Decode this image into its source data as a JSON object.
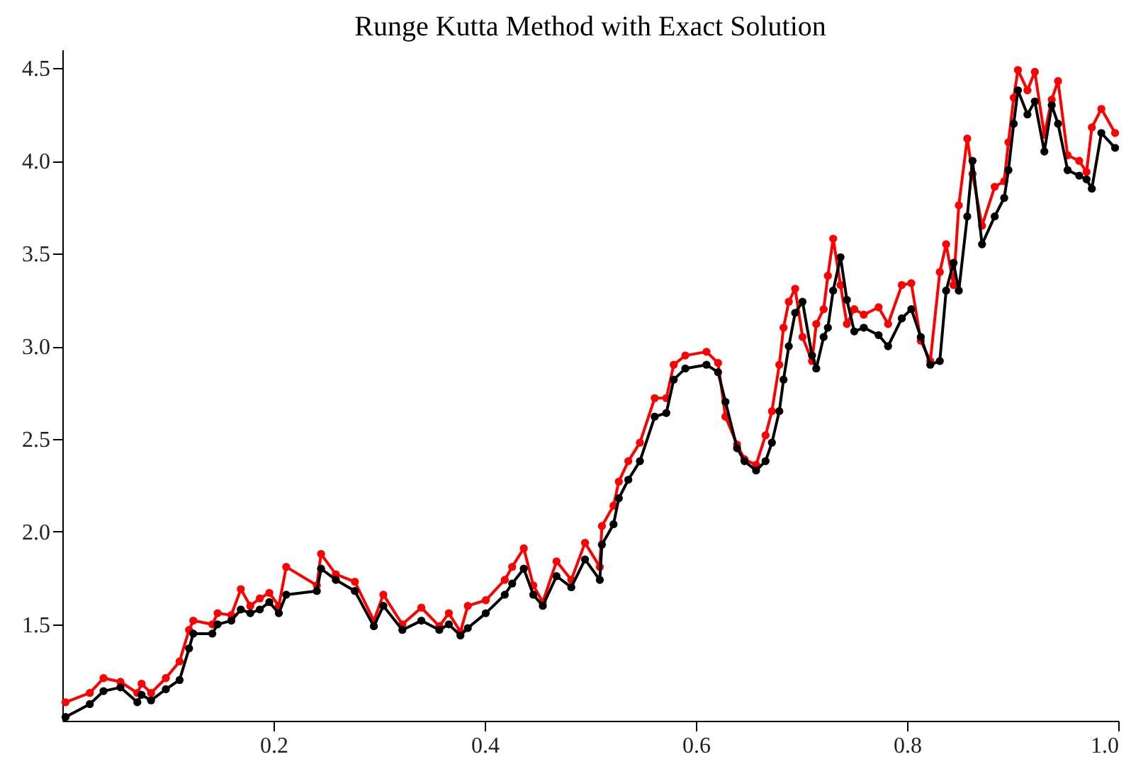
{
  "chart_data": {
    "type": "line",
    "title": "Runge Kutta Method with Exact Solution",
    "x": [
      0.003,
      0.026,
      0.039,
      0.055,
      0.071,
      0.075,
      0.084,
      0.098,
      0.111,
      0.12,
      0.124,
      0.142,
      0.147,
      0.16,
      0.169,
      0.178,
      0.187,
      0.196,
      0.205,
      0.212,
      0.241,
      0.245,
      0.259,
      0.277,
      0.295,
      0.304,
      0.322,
      0.34,
      0.357,
      0.366,
      0.377,
      0.384,
      0.401,
      0.419,
      0.426,
      0.437,
      0.446,
      0.455,
      0.468,
      0.482,
      0.495,
      0.509,
      0.511,
      0.522,
      0.527,
      0.536,
      0.547,
      0.561,
      0.572,
      0.579,
      0.59,
      0.61,
      0.621,
      0.628,
      0.639,
      0.646,
      0.657,
      0.666,
      0.672,
      0.679,
      0.683,
      0.688,
      0.694,
      0.701,
      0.71,
      0.714,
      0.721,
      0.725,
      0.73,
      0.737,
      0.743,
      0.75,
      0.759,
      0.773,
      0.782,
      0.795,
      0.804,
      0.813,
      0.822,
      0.831,
      0.837,
      0.844,
      0.849,
      0.857,
      0.862,
      0.871,
      0.883,
      0.892,
      0.896,
      0.901,
      0.905,
      0.914,
      0.921,
      0.93,
      0.937,
      0.943,
      0.952,
      0.963,
      0.97,
      0.975,
      0.984,
      0.997
    ],
    "series": [
      {
        "color": "#ff0000",
        "values": [
          1.08,
          1.13,
          1.21,
          1.19,
          1.13,
          1.18,
          1.13,
          1.21,
          1.3,
          1.47,
          1.52,
          1.5,
          1.56,
          1.55,
          1.69,
          1.6,
          1.64,
          1.67,
          1.6,
          1.81,
          1.71,
          1.88,
          1.77,
          1.73,
          1.52,
          1.66,
          1.5,
          1.59,
          1.49,
          1.56,
          1.46,
          1.6,
          1.63,
          1.74,
          1.81,
          1.91,
          1.71,
          1.62,
          1.84,
          1.74,
          1.94,
          1.81,
          2.03,
          2.14,
          2.27,
          2.38,
          2.48,
          2.72,
          2.72,
          2.9,
          2.95,
          2.97,
          2.91,
          2.62,
          2.47,
          2.39,
          2.36,
          2.52,
          2.65,
          2.9,
          3.1,
          3.24,
          3.31,
          3.05,
          2.92,
          3.12,
          3.2,
          3.38,
          3.58,
          3.33,
          3.12,
          3.2,
          3.17,
          3.21,
          3.12,
          3.33,
          3.34,
          3.03,
          2.92,
          3.4,
          3.55,
          3.33,
          3.76,
          4.12,
          3.93,
          3.65,
          3.86,
          3.89,
          4.1,
          4.34,
          4.49,
          4.38,
          4.48,
          4.14,
          4.33,
          4.43,
          4.03,
          4.0,
          3.94,
          4.18,
          4.28,
          4.15
        ]
      },
      {
        "color": "#000000",
        "values": [
          1.0,
          1.07,
          1.14,
          1.16,
          1.08,
          1.12,
          1.09,
          1.15,
          1.2,
          1.37,
          1.45,
          1.45,
          1.5,
          1.52,
          1.58,
          1.56,
          1.58,
          1.62,
          1.56,
          1.66,
          1.68,
          1.8,
          1.74,
          1.68,
          1.49,
          1.6,
          1.47,
          1.52,
          1.47,
          1.5,
          1.44,
          1.48,
          1.56,
          1.66,
          1.72,
          1.8,
          1.66,
          1.6,
          1.76,
          1.7,
          1.85,
          1.74,
          1.93,
          2.04,
          2.18,
          2.28,
          2.38,
          2.62,
          2.64,
          2.82,
          2.88,
          2.9,
          2.86,
          2.7,
          2.45,
          2.38,
          2.33,
          2.38,
          2.48,
          2.65,
          2.82,
          3.0,
          3.18,
          3.24,
          2.95,
          2.88,
          3.05,
          3.1,
          3.3,
          3.48,
          3.25,
          3.08,
          3.1,
          3.06,
          3.0,
          3.15,
          3.2,
          3.05,
          2.9,
          2.92,
          3.3,
          3.45,
          3.3,
          3.7,
          4.0,
          3.55,
          3.7,
          3.8,
          3.95,
          4.2,
          4.38,
          4.25,
          4.32,
          4.05,
          4.3,
          4.2,
          3.95,
          3.92,
          3.9,
          3.85,
          4.15,
          4.07
        ]
      }
    ],
    "xlim": [
      0,
      1.0
    ],
    "xticks": [
      0.2,
      0.4,
      0.6,
      0.8,
      {
        "value": 1,
        "label": "1.0"
      }
    ],
    "ylim": [
      0.98,
      4.6
    ],
    "yticks": [
      1.5,
      {
        "value": 2,
        "label": "2.0"
      },
      2.5,
      {
        "value": 3,
        "label": "3.0"
      },
      3.5,
      {
        "value": 4,
        "label": "4.0"
      },
      4.5
    ],
    "marker": "circle",
    "line_style": "solid",
    "grid": false
  }
}
